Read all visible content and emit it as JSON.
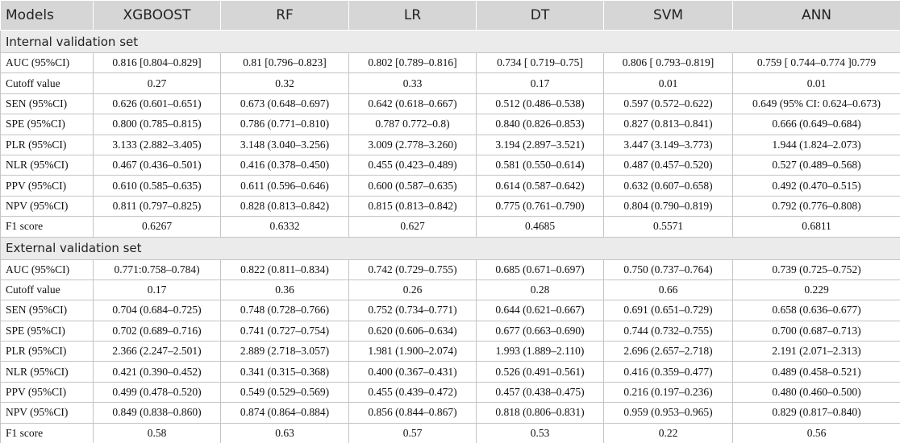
{
  "table": {
    "headers": [
      "Models",
      "XGBOOST",
      "RF",
      "LR",
      "DT",
      "SVM",
      "ANN"
    ],
    "sections": [
      {
        "title": "Internal validation set",
        "rows": [
          [
            "AUC (95%CI)",
            "0.816 [0.804–0.829]",
            "0.81 [0.796–0.823]",
            "0.802 [0.789–0.816]",
            "0.734 [ 0.719–0.75]",
            "0.806 [ 0.793–0.819]",
            "0.759 [ 0.744–0.774 ]0.779"
          ],
          [
            "Cutoff value",
            "0.27",
            "0.32",
            "0.33",
            "0.17",
            "0.01",
            "0.01"
          ],
          [
            "SEN (95%CI)",
            "0.626 (0.601–0.651)",
            "0.673 (0.648–0.697)",
            "0.642 (0.618–0.667)",
            "0.512 (0.486–0.538)",
            "0.597 (0.572–0.622)",
            "0.649 (95% CI: 0.624–0.673)"
          ],
          [
            "SPE (95%CI)",
            "0.800 (0.785–0.815)",
            "0.786 (0.771–0.810)",
            "0.787 0.772–0.8)",
            "0.840 (0.826–0.853)",
            "0.827 (0.813–0.841)",
            "0.666 (0.649–0.684)"
          ],
          [
            "PLR (95%CI)",
            "3.133 (2.882–3.405)",
            "3.148 (3.040–3.256)",
            "3.009 (2.778–3.260)",
            "3.194 (2.897–3.521)",
            "3.447 (3.149–3.773)",
            "1.944 (1.824–2.073)"
          ],
          [
            "NLR (95%CI)",
            "0.467 (0.436–0.501)",
            "0.416 (0.378–0.450)",
            "0.455 (0.423–0.489)",
            "0.581 (0.550–0.614)",
            "0.487 (0.457–0.520)",
            "0.527 (0.489–0.568)"
          ],
          [
            "PPV (95%CI)",
            "0.610 (0.585–0.635)",
            "0.611 (0.596–0.646)",
            "0.600 (0.587–0.635)",
            "0.614 (0.587–0.642)",
            "0.632 (0.607–0.658)",
            "0.492 (0.470–0.515)"
          ],
          [
            "NPV (95%CI)",
            "0.811 (0.797–0.825)",
            "0.828 (0.813–0.842)",
            "0.815 (0.813–0.842)",
            "0.775 (0.761–0.790)",
            "0.804 (0.790–0.819)",
            "0.792 (0.776–0.808)"
          ],
          [
            "F1 score",
            "0.6267",
            "0.6332",
            "0.627",
            "0.4685",
            "0.5571",
            "0.6811"
          ]
        ]
      },
      {
        "title": "External validation set",
        "rows": [
          [
            "AUC (95%CI)",
            "0.771:0.758–0.784)",
            "0.822 (0.811–0.834)",
            "0.742 (0.729–0.755)",
            "0.685 (0.671–0.697)",
            "0.750 (0.737–0.764)",
            "0.739 (0.725–0.752)"
          ],
          [
            "Cutoff value",
            "0.17",
            "0.36",
            "0.26",
            "0.28",
            "0.66",
            "0.229"
          ],
          [
            "SEN (95%CI)",
            "0.704 (0.684–0.725)",
            "0.748 (0.728–0.766)",
            "0.752 (0.734–0.771)",
            "0.644 (0.621–0.667)",
            "0.691 (0.651–0.729)",
            "0.658 (0.636–0.677)"
          ],
          [
            "SPE (95%CI)",
            "0.702 (0.689–0.716)",
            "0.741 (0.727–0.754)",
            "0.620 (0.606–0.634)",
            "0.677 (0.663–0.690)",
            "0.744 (0.732–0.755)",
            "0.700 (0.687–0.713)"
          ],
          [
            "PLR (95%CI)",
            "2.366 (2.247–2.501)",
            "2.889 (2.718–3.057)",
            "1.981 (1.900–2.074)",
            "1.993 (1.889–2.110)",
            "2.696 (2.657–2.718)",
            "2.191 (2.071–2.313)"
          ],
          [
            "NLR (95%CI)",
            "0.421 (0.390–0.452)",
            "0.341 (0.315–0.368)",
            "0.400 (0.367–0.431)",
            "0.526 (0.491–0.561)",
            "0.416 (0.359–0.477)",
            "0.489 (0.458–0.521)"
          ],
          [
            "PPV (95%CI)",
            "0.499 (0.478–0.520)",
            "0.549 (0.529–0.569)",
            "0.455 (0.439–0.472)",
            "0.457 (0.438–0.475)",
            "0.216 (0.197–0.236)",
            "0.480 (0.460–0.500)"
          ],
          [
            "NPV (95%CI)",
            "0.849 (0.838–0.860)",
            "0.874 (0.864–0.884)",
            "0.856 (0.844–0.867)",
            "0.818 (0.806–0.831)",
            "0.959 (0.953–0.965)",
            "0.829 (0.817–0.840)"
          ],
          [
            "F1 score",
            "0.58",
            "0.63",
            "0.57",
            "0.53",
            "0.22",
            "0.56"
          ]
        ]
      }
    ]
  }
}
